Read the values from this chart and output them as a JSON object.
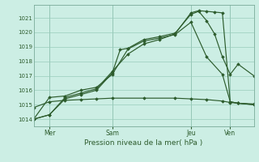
{
  "xlabel": "Pression niveau de la mer( hPa )",
  "bg_color": "#cceee4",
  "grid_color": "#99ccbb",
  "line_color": "#2d5c2d",
  "ylim": [
    1013.5,
    1021.9
  ],
  "yticks": [
    1014,
    1015,
    1016,
    1017,
    1018,
    1019,
    1020,
    1021
  ],
  "xtick_labels": [
    "Mer",
    "Sam",
    "Jeu",
    "Ven"
  ],
  "xtick_positions": [
    6,
    30,
    60,
    75
  ],
  "vline_positions": [
    6,
    30,
    60,
    75
  ],
  "xlim": [
    0,
    84
  ],
  "series1_x": [
    0,
    6,
    12,
    18,
    24,
    30,
    33,
    36,
    42,
    48,
    54,
    60,
    63,
    66,
    69,
    72,
    75,
    78,
    84
  ],
  "series1_y": [
    1014.0,
    1014.3,
    1015.4,
    1015.7,
    1016.0,
    1017.2,
    1018.8,
    1018.9,
    1019.5,
    1019.7,
    1019.95,
    1021.25,
    1021.45,
    1020.8,
    1019.9,
    1018.3,
    1017.1,
    1017.8,
    1017.0
  ],
  "series2_x": [
    0,
    6,
    12,
    18,
    24,
    30,
    36,
    42,
    48,
    54,
    60,
    63,
    66,
    69,
    72,
    75,
    78,
    84
  ],
  "series2_y": [
    1014.0,
    1014.3,
    1015.5,
    1015.8,
    1016.1,
    1017.3,
    1018.5,
    1019.2,
    1019.5,
    1019.9,
    1021.35,
    1021.5,
    1021.45,
    1021.4,
    1021.35,
    1015.2,
    1015.1,
    1015.0
  ],
  "series3_x": [
    0,
    6,
    12,
    18,
    24,
    30,
    36,
    42,
    48,
    54,
    60,
    66,
    72,
    75,
    78,
    84
  ],
  "series3_y": [
    1014.0,
    1015.5,
    1015.6,
    1016.0,
    1016.2,
    1017.1,
    1018.85,
    1019.4,
    1019.6,
    1019.85,
    1020.7,
    1018.3,
    1017.1,
    1015.2,
    1015.1,
    1015.0
  ],
  "series4_x": [
    0,
    6,
    12,
    18,
    24,
    30,
    42,
    54,
    60,
    66,
    72,
    75,
    78,
    84
  ],
  "series4_y": [
    1014.8,
    1015.2,
    1015.3,
    1015.35,
    1015.4,
    1015.45,
    1015.45,
    1015.45,
    1015.4,
    1015.35,
    1015.25,
    1015.15,
    1015.1,
    1015.05
  ]
}
